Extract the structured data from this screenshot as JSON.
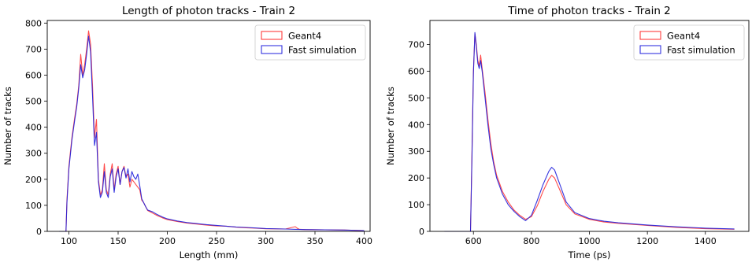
{
  "chart_data": [
    {
      "type": "line",
      "title": "Length of photon tracks - Train 2",
      "xlabel": "Length (mm)",
      "ylabel": "Number of tracks",
      "xlim": [
        78,
        406
      ],
      "ylim": [
        0,
        810
      ],
      "xticks": [
        100,
        150,
        200,
        250,
        300,
        350,
        400
      ],
      "yticks": [
        0,
        100,
        200,
        300,
        400,
        500,
        600,
        700,
        800
      ],
      "legend_position": "top-right",
      "grid": false,
      "series": [
        {
          "name": "Geant4",
          "color": "#ff2a2a",
          "x": [
            90,
            97,
            98,
            100,
            103,
            106,
            108,
            110,
            112,
            114,
            116,
            118,
            120,
            122,
            124,
            126,
            128,
            130,
            132,
            134,
            136,
            138,
            140,
            142,
            144,
            146,
            148,
            150,
            152,
            154,
            156,
            158,
            160,
            162,
            164,
            166,
            168,
            170,
            172,
            174,
            176,
            178,
            180,
            185,
            190,
            195,
            200,
            210,
            220,
            230,
            240,
            250,
            260,
            270,
            280,
            290,
            300,
            320,
            330,
            332,
            334,
            340,
            360,
            380,
            400
          ],
          "y": [
            0,
            0,
            120,
            250,
            360,
            440,
            490,
            560,
            680,
            600,
            640,
            700,
            770,
            720,
            560,
            360,
            430,
            200,
            140,
            160,
            260,
            160,
            140,
            220,
            260,
            160,
            220,
            250,
            180,
            230,
            250,
            210,
            220,
            170,
            200,
            190,
            180,
            170,
            160,
            120,
            110,
            95,
            80,
            70,
            60,
            52,
            45,
            38,
            32,
            28,
            24,
            21,
            20,
            16,
            14,
            12,
            10,
            9,
            18,
            12,
            8,
            7,
            6,
            5,
            3
          ]
        },
        {
          "name": "Fast simulation",
          "color": "#1f1fdc",
          "x": [
            90,
            97,
            98,
            100,
            103,
            106,
            108,
            110,
            112,
            114,
            116,
            118,
            120,
            122,
            124,
            126,
            128,
            130,
            132,
            134,
            136,
            138,
            140,
            142,
            144,
            146,
            148,
            150,
            152,
            154,
            156,
            158,
            160,
            162,
            164,
            166,
            168,
            170,
            172,
            174,
            176,
            178,
            180,
            185,
            190,
            195,
            200,
            210,
            220,
            230,
            240,
            250,
            260,
            270,
            280,
            290,
            300,
            320,
            330,
            340,
            360,
            380,
            400
          ],
          "y": [
            0,
            0,
            110,
            240,
            350,
            430,
            480,
            550,
            640,
            590,
            620,
            680,
            750,
            690,
            520,
            330,
            380,
            190,
            130,
            150,
            230,
            150,
            130,
            210,
            240,
            150,
            210,
            240,
            180,
            230,
            245,
            205,
            240,
            190,
            230,
            210,
            200,
            220,
            175,
            125,
            110,
            95,
            82,
            75,
            64,
            55,
            48,
            40,
            34,
            30,
            26,
            23,
            20,
            17,
            15,
            13,
            11,
            9,
            8,
            7,
            6,
            5,
            3
          ]
        }
      ]
    },
    {
      "type": "line",
      "title": "Time of photon tracks - Train 2",
      "xlabel": "Time (ps)",
      "ylabel": "Number of tracks",
      "xlim": [
        450,
        1550
      ],
      "ylim": [
        0,
        790
      ],
      "xticks": [
        600,
        800,
        1000,
        1200,
        1400
      ],
      "yticks": [
        0,
        100,
        200,
        300,
        400,
        500,
        600,
        700
      ],
      "legend_position": "top-right",
      "grid": false,
      "series": [
        {
          "name": "Geant4",
          "color": "#ff2a2a",
          "x": [
            500,
            590,
            595,
            600,
            605,
            610,
            615,
            620,
            625,
            630,
            640,
            650,
            660,
            670,
            680,
            690,
            700,
            720,
            740,
            760,
            780,
            800,
            820,
            840,
            860,
            870,
            880,
            900,
            920,
            950,
            1000,
            1050,
            1100,
            1200,
            1300,
            1400,
            1500
          ],
          "y": [
            0,
            0,
            300,
            600,
            740,
            700,
            640,
            620,
            660,
            610,
            520,
            420,
            330,
            260,
            210,
            180,
            150,
            110,
            80,
            60,
            45,
            55,
            95,
            150,
            195,
            210,
            200,
            150,
            100,
            65,
            45,
            35,
            30,
            22,
            15,
            10,
            8
          ]
        },
        {
          "name": "Fast simulation",
          "color": "#1f1fdc",
          "x": [
            500,
            590,
            595,
            600,
            605,
            610,
            615,
            620,
            625,
            630,
            640,
            650,
            660,
            670,
            680,
            690,
            700,
            720,
            740,
            760,
            780,
            800,
            820,
            840,
            860,
            870,
            880,
            900,
            920,
            950,
            1000,
            1050,
            1100,
            1200,
            1300,
            1400,
            1500
          ],
          "y": [
            0,
            0,
            280,
            590,
            745,
            690,
            630,
            610,
            640,
            600,
            500,
            400,
            310,
            250,
            200,
            170,
            140,
            100,
            75,
            55,
            40,
            60,
            115,
            175,
            225,
            240,
            230,
            170,
            110,
            70,
            48,
            38,
            32,
            24,
            17,
            12,
            9
          ]
        }
      ]
    }
  ]
}
